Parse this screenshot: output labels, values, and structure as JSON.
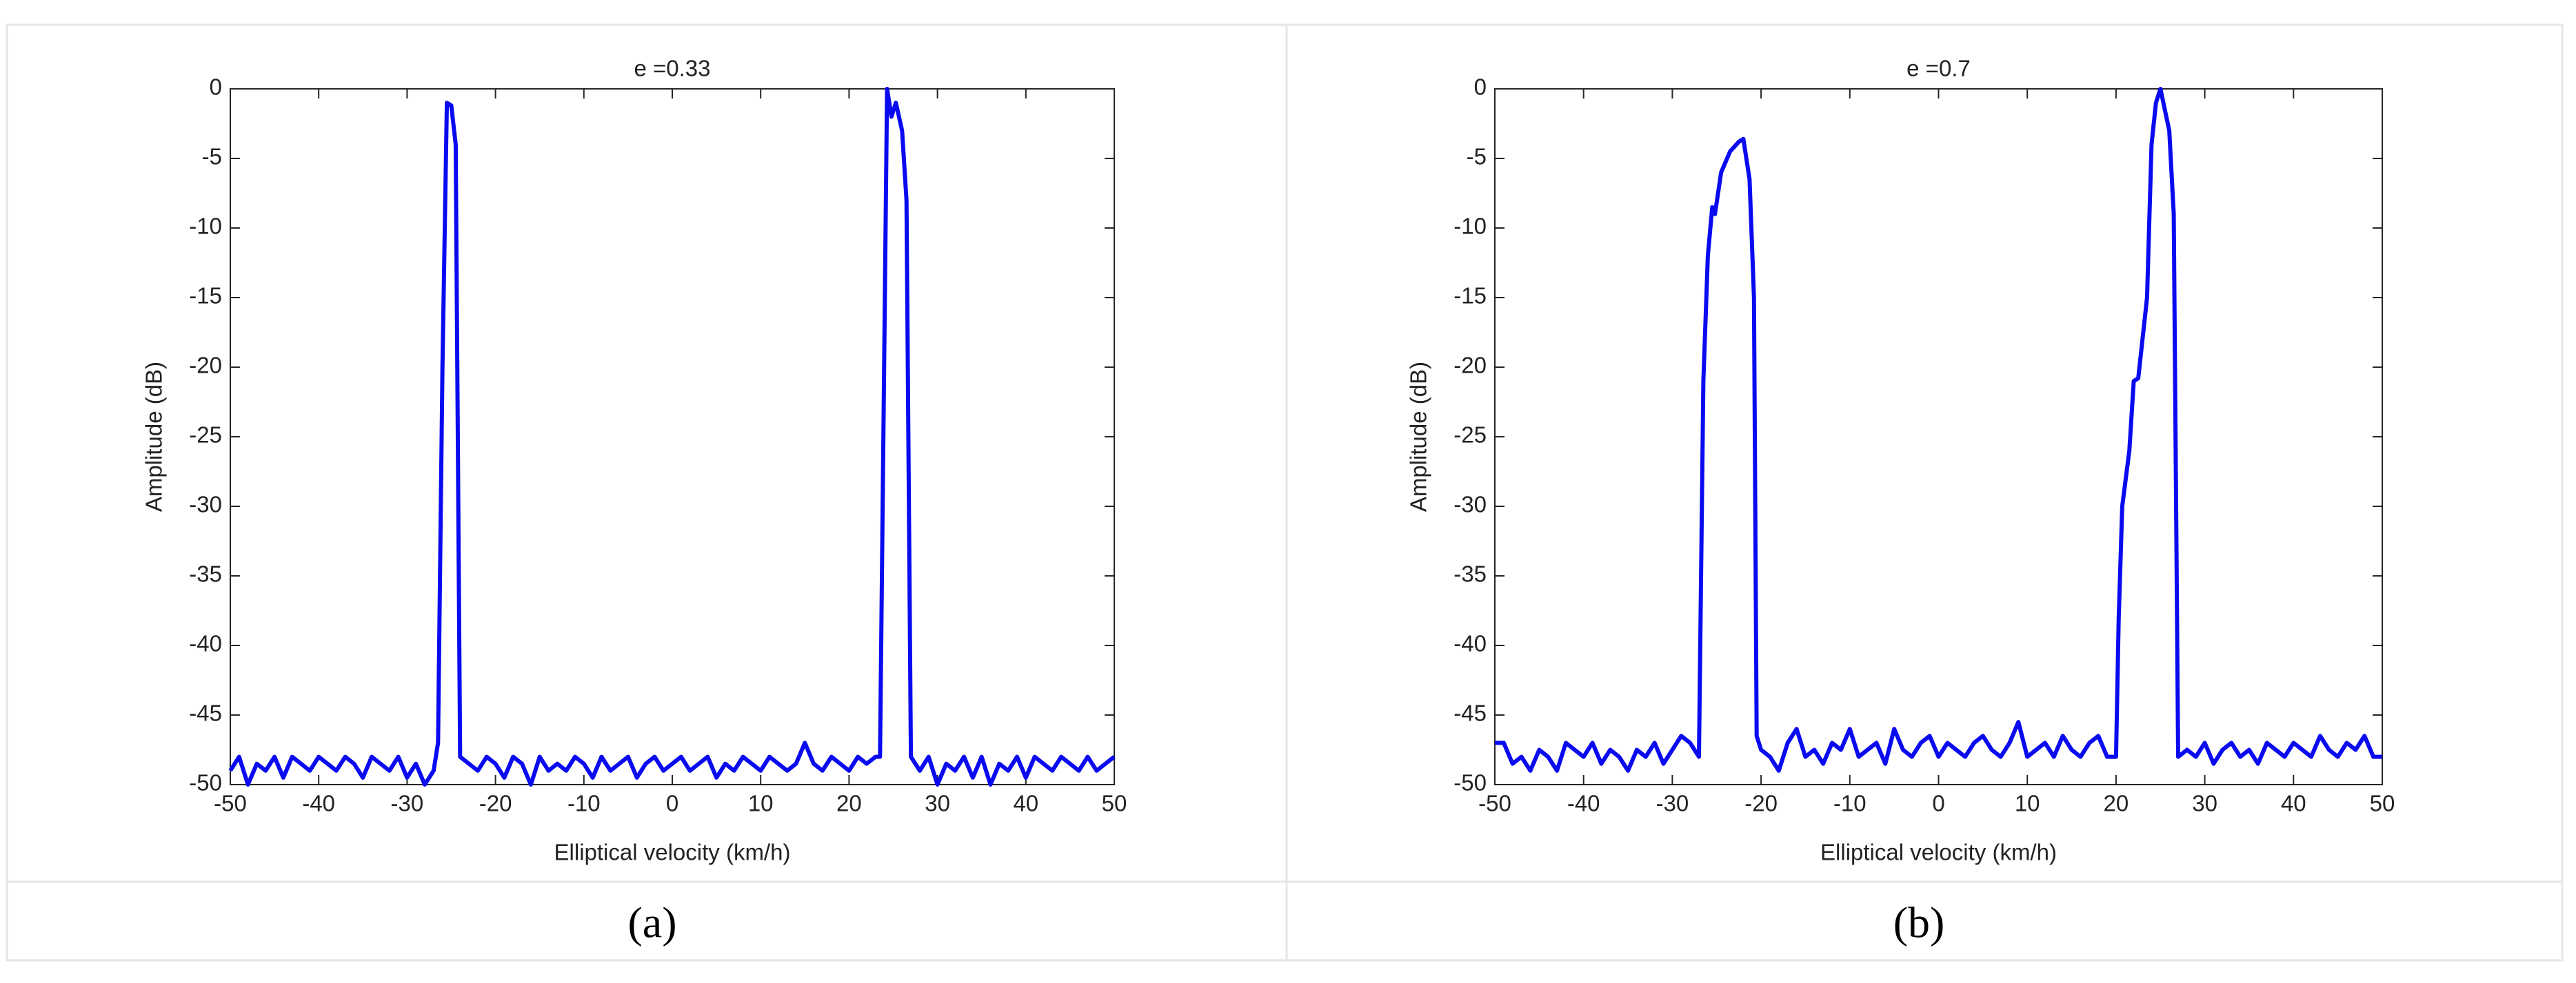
{
  "chart_data": [
    {
      "type": "line",
      "title": "e =0.33",
      "xlabel": "Elliptical velocity (km/h)",
      "ylabel": "Amplitude (dB)",
      "caption": "(a)",
      "xlim": [
        -50,
        50
      ],
      "ylim": [
        -50,
        0
      ],
      "xticks": [
        -50,
        -40,
        -30,
        -20,
        -10,
        0,
        10,
        20,
        30,
        40,
        50
      ],
      "yticks": [
        -50,
        -45,
        -40,
        -35,
        -30,
        -25,
        -20,
        -15,
        -10,
        -5,
        0
      ],
      "series": [
        {
          "color": "#0a0af0",
          "x": [
            -50,
            -49,
            -48,
            -47,
            -46,
            -45,
            -44,
            -43,
            -42,
            -41,
            -40,
            -39,
            -38,
            -37,
            -36,
            -35,
            -34,
            -33,
            -32,
            -31,
            -30,
            -29,
            -28,
            -27,
            -26.5,
            -26,
            -25.5,
            -25,
            -24.5,
            -24,
            -23,
            -22,
            -21,
            -20,
            -19,
            -18,
            -17,
            -16,
            -15,
            -14,
            -13,
            -12,
            -11,
            -10,
            -9,
            -8,
            -7,
            -6,
            -5,
            -4,
            -3,
            -2,
            -1,
            0,
            1,
            2,
            3,
            4,
            5,
            6,
            7,
            8,
            9,
            10,
            11,
            12,
            13,
            14,
            15,
            16,
            17,
            18,
            19,
            20,
            21,
            22,
            23,
            23.5,
            24.3,
            24.8,
            25.3,
            26,
            26.5,
            27,
            28,
            29,
            30,
            31,
            32,
            33,
            34,
            35,
            36,
            37,
            38,
            39,
            40,
            41,
            42,
            43,
            44,
            45,
            46,
            47,
            48,
            49,
            50
          ],
          "values": [
            -49,
            -48,
            -50,
            -48.5,
            -49,
            -48,
            -49.5,
            -48,
            -48.5,
            -49,
            -48,
            -48.5,
            -49,
            -48,
            -48.5,
            -49.5,
            -48,
            -48.5,
            -49,
            -48,
            -49.5,
            -48.5,
            -50,
            -49,
            -47,
            -20,
            -1,
            -1.2,
            -4,
            -48,
            -48.5,
            -49,
            -48,
            -48.5,
            -49.5,
            -48,
            -48.5,
            -50,
            -48,
            -49,
            -48.5,
            -49,
            -48,
            -48.5,
            -49.5,
            -48,
            -49,
            -48.5,
            -48,
            -49.5,
            -48.5,
            -48,
            -49,
            -48.5,
            -48,
            -49,
            -48.5,
            -48,
            -49.5,
            -48.5,
            -49,
            -48,
            -48.5,
            -49,
            -48,
            -48.5,
            -49,
            -48.5,
            -47,
            -48.5,
            -49,
            -48,
            -48.5,
            -49,
            -48,
            -48.5,
            -48,
            -48,
            0,
            -2,
            -1,
            -3,
            -8,
            -48,
            -49,
            -48,
            -50,
            -48.5,
            -49,
            -48,
            -49.5,
            -48,
            -50,
            -48.5,
            -49,
            -48,
            -49.5,
            -48,
            -48.5,
            -49,
            -48,
            -48.5,
            -49,
            -48,
            -49,
            -48.5,
            -48
          ]
        }
      ]
    },
    {
      "type": "line",
      "title": "e =0.7",
      "xlabel": "Elliptical velocity (km/h)",
      "ylabel": "Amplitude (dB)",
      "caption": "(b)",
      "xlim": [
        -50,
        50
      ],
      "ylim": [
        -50,
        0
      ],
      "xticks": [
        -50,
        -40,
        -30,
        -20,
        -10,
        0,
        10,
        20,
        30,
        40,
        50
      ],
      "yticks": [
        -50,
        -45,
        -40,
        -35,
        -30,
        -25,
        -20,
        -15,
        -10,
        -5,
        0
      ],
      "series": [
        {
          "color": "#0a0af0",
          "x": [
            -50,
            -49,
            -48,
            -47,
            -46,
            -45,
            -44,
            -43,
            -42,
            -41,
            -40,
            -39,
            -38,
            -37,
            -36,
            -35,
            -34,
            -33,
            -32,
            -31,
            -30,
            -29,
            -28,
            -27,
            -26.5,
            -26,
            -25.5,
            -25.2,
            -24.5,
            -23.5,
            -22.5,
            -22,
            -21.3,
            -20.8,
            -20.5,
            -20,
            -19,
            -18,
            -17,
            -16,
            -15,
            -14,
            -13,
            -12,
            -11,
            -10,
            -9,
            -8,
            -7,
            -6,
            -5,
            -4,
            -3,
            -2,
            -1,
            0,
            1,
            2,
            3,
            4,
            5,
            6,
            7,
            8,
            9,
            10,
            11,
            12,
            13,
            14,
            15,
            16,
            17,
            18,
            19,
            20,
            20.3,
            20.7,
            21.5,
            22,
            22.5,
            23.5,
            24,
            24.5,
            25,
            26,
            26.5,
            27,
            28,
            29,
            30,
            31,
            32,
            33,
            34,
            35,
            36,
            37,
            38,
            39,
            40,
            41,
            42,
            43,
            44,
            45,
            46,
            47,
            48,
            49,
            50
          ],
          "values": [
            -47,
            -47,
            -48.5,
            -48,
            -49,
            -47.5,
            -48,
            -49,
            -47,
            -47.5,
            -48,
            -47,
            -48.5,
            -47.5,
            -48,
            -49,
            -47.5,
            -48,
            -47,
            -48.5,
            -47.5,
            -46.5,
            -47,
            -48,
            -21,
            -12,
            -8.5,
            -9,
            -6,
            -4.5,
            -3.8,
            -3.6,
            -6.5,
            -15,
            -46.5,
            -47.5,
            -48,
            -49,
            -47,
            -46,
            -48,
            -47.5,
            -48.5,
            -47,
            -47.5,
            -46,
            -48,
            -47.5,
            -47,
            -48.5,
            -46,
            -47.5,
            -48,
            -47,
            -46.5,
            -48,
            -47,
            -47.5,
            -48,
            -47,
            -46.5,
            -47.5,
            -48,
            -47,
            -45.5,
            -48,
            -47.5,
            -47,
            -48,
            -46.5,
            -47.5,
            -48,
            -47,
            -46.5,
            -48,
            -48,
            -38,
            -30,
            -26,
            -21,
            -20.8,
            -15,
            -4,
            -1,
            0,
            -3,
            -9,
            -48,
            -47.5,
            -48,
            -47,
            -48.5,
            -47.5,
            -47,
            -48,
            -47.5,
            -48.5,
            -47,
            -47.5,
            -48,
            -47,
            -47.5,
            -48,
            -46.5,
            -47.5,
            -48,
            -47,
            -47.5,
            -46.5,
            -48,
            -48
          ]
        }
      ]
    }
  ]
}
